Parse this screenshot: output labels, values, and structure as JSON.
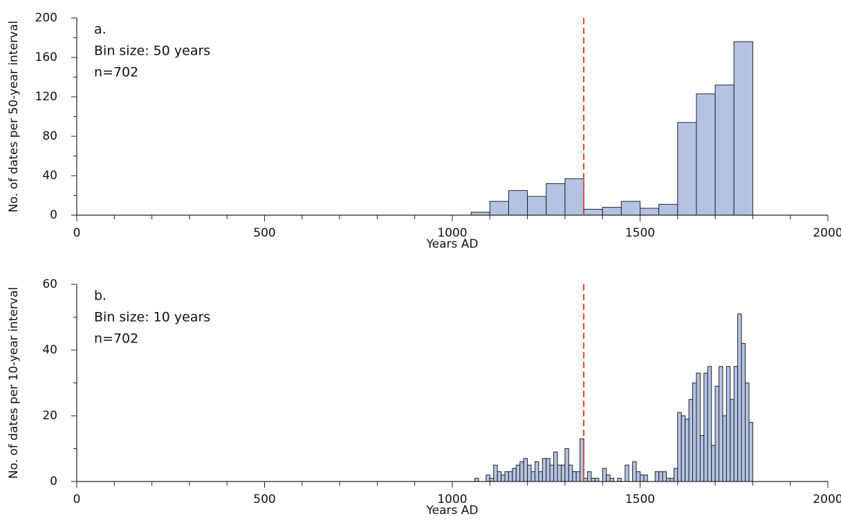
{
  "chart_data": [
    {
      "type": "histogram",
      "annotations": [
        "a.",
        "Bin size: 50 years",
        "n=702"
      ],
      "x_label": "Years AD",
      "y_label": "No. of dates per 50-year interval",
      "bins": [
        1050,
        1100,
        1150,
        1200,
        1250,
        1300,
        1350,
        1400,
        1450,
        1500,
        1550,
        1600,
        1650,
        1700,
        1750,
        1800
      ],
      "values": [
        3,
        14,
        25,
        19,
        32,
        37,
        6,
        8,
        14,
        7,
        11,
        94,
        123,
        132,
        176
      ],
      "color": "#b4c3e4",
      "reference_line": 1350,
      "reference_color": "#e8412c",
      "xlim": [
        0,
        2000
      ],
      "xticks": [
        0,
        500,
        1000,
        1500,
        2000
      ],
      "xminorticks": [
        100,
        200,
        300,
        400,
        600,
        700,
        800,
        900,
        1100,
        1200,
        1300,
        1400,
        1600,
        1700,
        1800,
        1900
      ],
      "ylim": [
        0,
        200
      ],
      "yticks": [
        0,
        40,
        80,
        120,
        160,
        200
      ],
      "yminorticks": [
        20,
        60,
        100,
        140,
        180
      ]
    },
    {
      "type": "histogram",
      "annotations": [
        "b.",
        "Bin size: 10 years",
        "n=702"
      ],
      "x_label": "Years AD",
      "y_label": "No. of dates per 10-year interval",
      "bins": [
        1060,
        1070,
        1080,
        1090,
        1100,
        1110,
        1120,
        1130,
        1140,
        1150,
        1160,
        1170,
        1180,
        1190,
        1200,
        1210,
        1220,
        1230,
        1240,
        1250,
        1260,
        1270,
        1280,
        1290,
        1300,
        1310,
        1320,
        1330,
        1340,
        1350,
        1360,
        1370,
        1380,
        1390,
        1400,
        1410,
        1420,
        1430,
        1440,
        1450,
        1460,
        1470,
        1480,
        1490,
        1500,
        1510,
        1520,
        1530,
        1540,
        1550,
        1560,
        1570,
        1580,
        1590,
        1600,
        1610,
        1620,
        1630,
        1640,
        1650,
        1660,
        1670,
        1680,
        1690,
        1700,
        1710,
        1720,
        1730,
        1740,
        1750,
        1760,
        1770,
        1780,
        1790,
        1800
      ],
      "values": [
        1,
        0,
        0,
        2,
        1,
        5,
        3,
        2,
        3,
        3,
        4,
        5,
        6,
        7,
        5,
        3,
        6,
        3,
        7,
        7,
        5,
        9,
        5,
        5,
        10,
        5,
        3,
        3,
        13,
        1,
        3,
        1,
        1,
        0,
        4,
        2,
        1,
        0,
        1,
        0,
        5,
        0,
        6,
        3,
        2,
        2,
        0,
        0,
        3,
        3,
        3,
        1,
        1,
        4,
        21,
        20,
        19,
        25,
        30,
        33,
        14,
        33,
        35,
        11,
        29,
        35,
        20,
        35,
        25,
        35,
        51,
        42,
        30,
        18
      ],
      "color": "#b4c3e4",
      "reference_line": 1350,
      "reference_color": "#e8412c",
      "xlim": [
        0,
        2000
      ],
      "xticks": [
        0,
        500,
        1000,
        1500,
        2000
      ],
      "xminorticks": [
        100,
        200,
        300,
        400,
        600,
        700,
        800,
        900,
        1100,
        1200,
        1300,
        1400,
        1600,
        1700,
        1800,
        1900
      ],
      "ylim": [
        0,
        60
      ],
      "yticks": [
        0,
        20,
        40,
        60
      ],
      "yminorticks": [
        10,
        30,
        50
      ]
    }
  ]
}
